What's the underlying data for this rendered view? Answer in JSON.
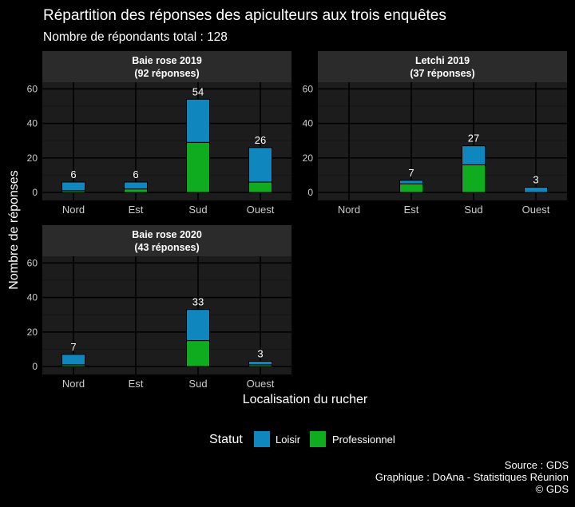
{
  "title": "Répartition des réponses des apiculteurs aux trois enquêtes",
  "subtitle": "Nombre de répondants total : 128",
  "caption": [
    "Source : GDS",
    "Graphique : DoAna - Statistiques Réunion",
    "© GDS"
  ],
  "colors": {
    "loisir": "#0f87be",
    "professionnel": "#0fac20",
    "panel_bg": "#1c1c1c",
    "strip_bg": "#2b2b2b",
    "grid": "#000000"
  },
  "chart_data": {
    "type": "bar",
    "stacked": true,
    "xlabel": "Localisation du rucher",
    "ylabel": "Nombre de réponses",
    "ylim": [
      0,
      62
    ],
    "yticks": [
      0,
      20,
      40,
      60
    ],
    "categories": [
      "Nord",
      "Est",
      "Sud",
      "Ouest"
    ],
    "legend": {
      "title": "Statut",
      "position": "bottom",
      "entries": [
        "Loisir",
        "Professionnel"
      ]
    },
    "panels": [
      {
        "title_line1": "Baie rose 2019",
        "title_line2": "(92 réponses)",
        "series": [
          {
            "name": "Professionnel",
            "values": [
              1,
              2,
              29,
              6
            ]
          },
          {
            "name": "Loisir",
            "values": [
              5,
              4,
              25,
              20
            ]
          }
        ],
        "totals": [
          6,
          6,
          54,
          26
        ]
      },
      {
        "title_line1": "Letchi 2019",
        "title_line2": "(37 réponses)",
        "series": [
          {
            "name": "Professionnel",
            "values": [
              0,
              5,
              16,
              0
            ]
          },
          {
            "name": "Loisir",
            "values": [
              0,
              2,
              11,
              3
            ]
          }
        ],
        "totals": [
          null,
          7,
          27,
          3
        ]
      },
      {
        "title_line1": "Baie rose 2020",
        "title_line2": "(43 réponses)",
        "series": [
          {
            "name": "Professionnel",
            "values": [
              1,
              0,
              15,
              1
            ]
          },
          {
            "name": "Loisir",
            "values": [
              6,
              0,
              18,
              2
            ]
          }
        ],
        "totals": [
          7,
          null,
          33,
          3
        ]
      }
    ]
  }
}
